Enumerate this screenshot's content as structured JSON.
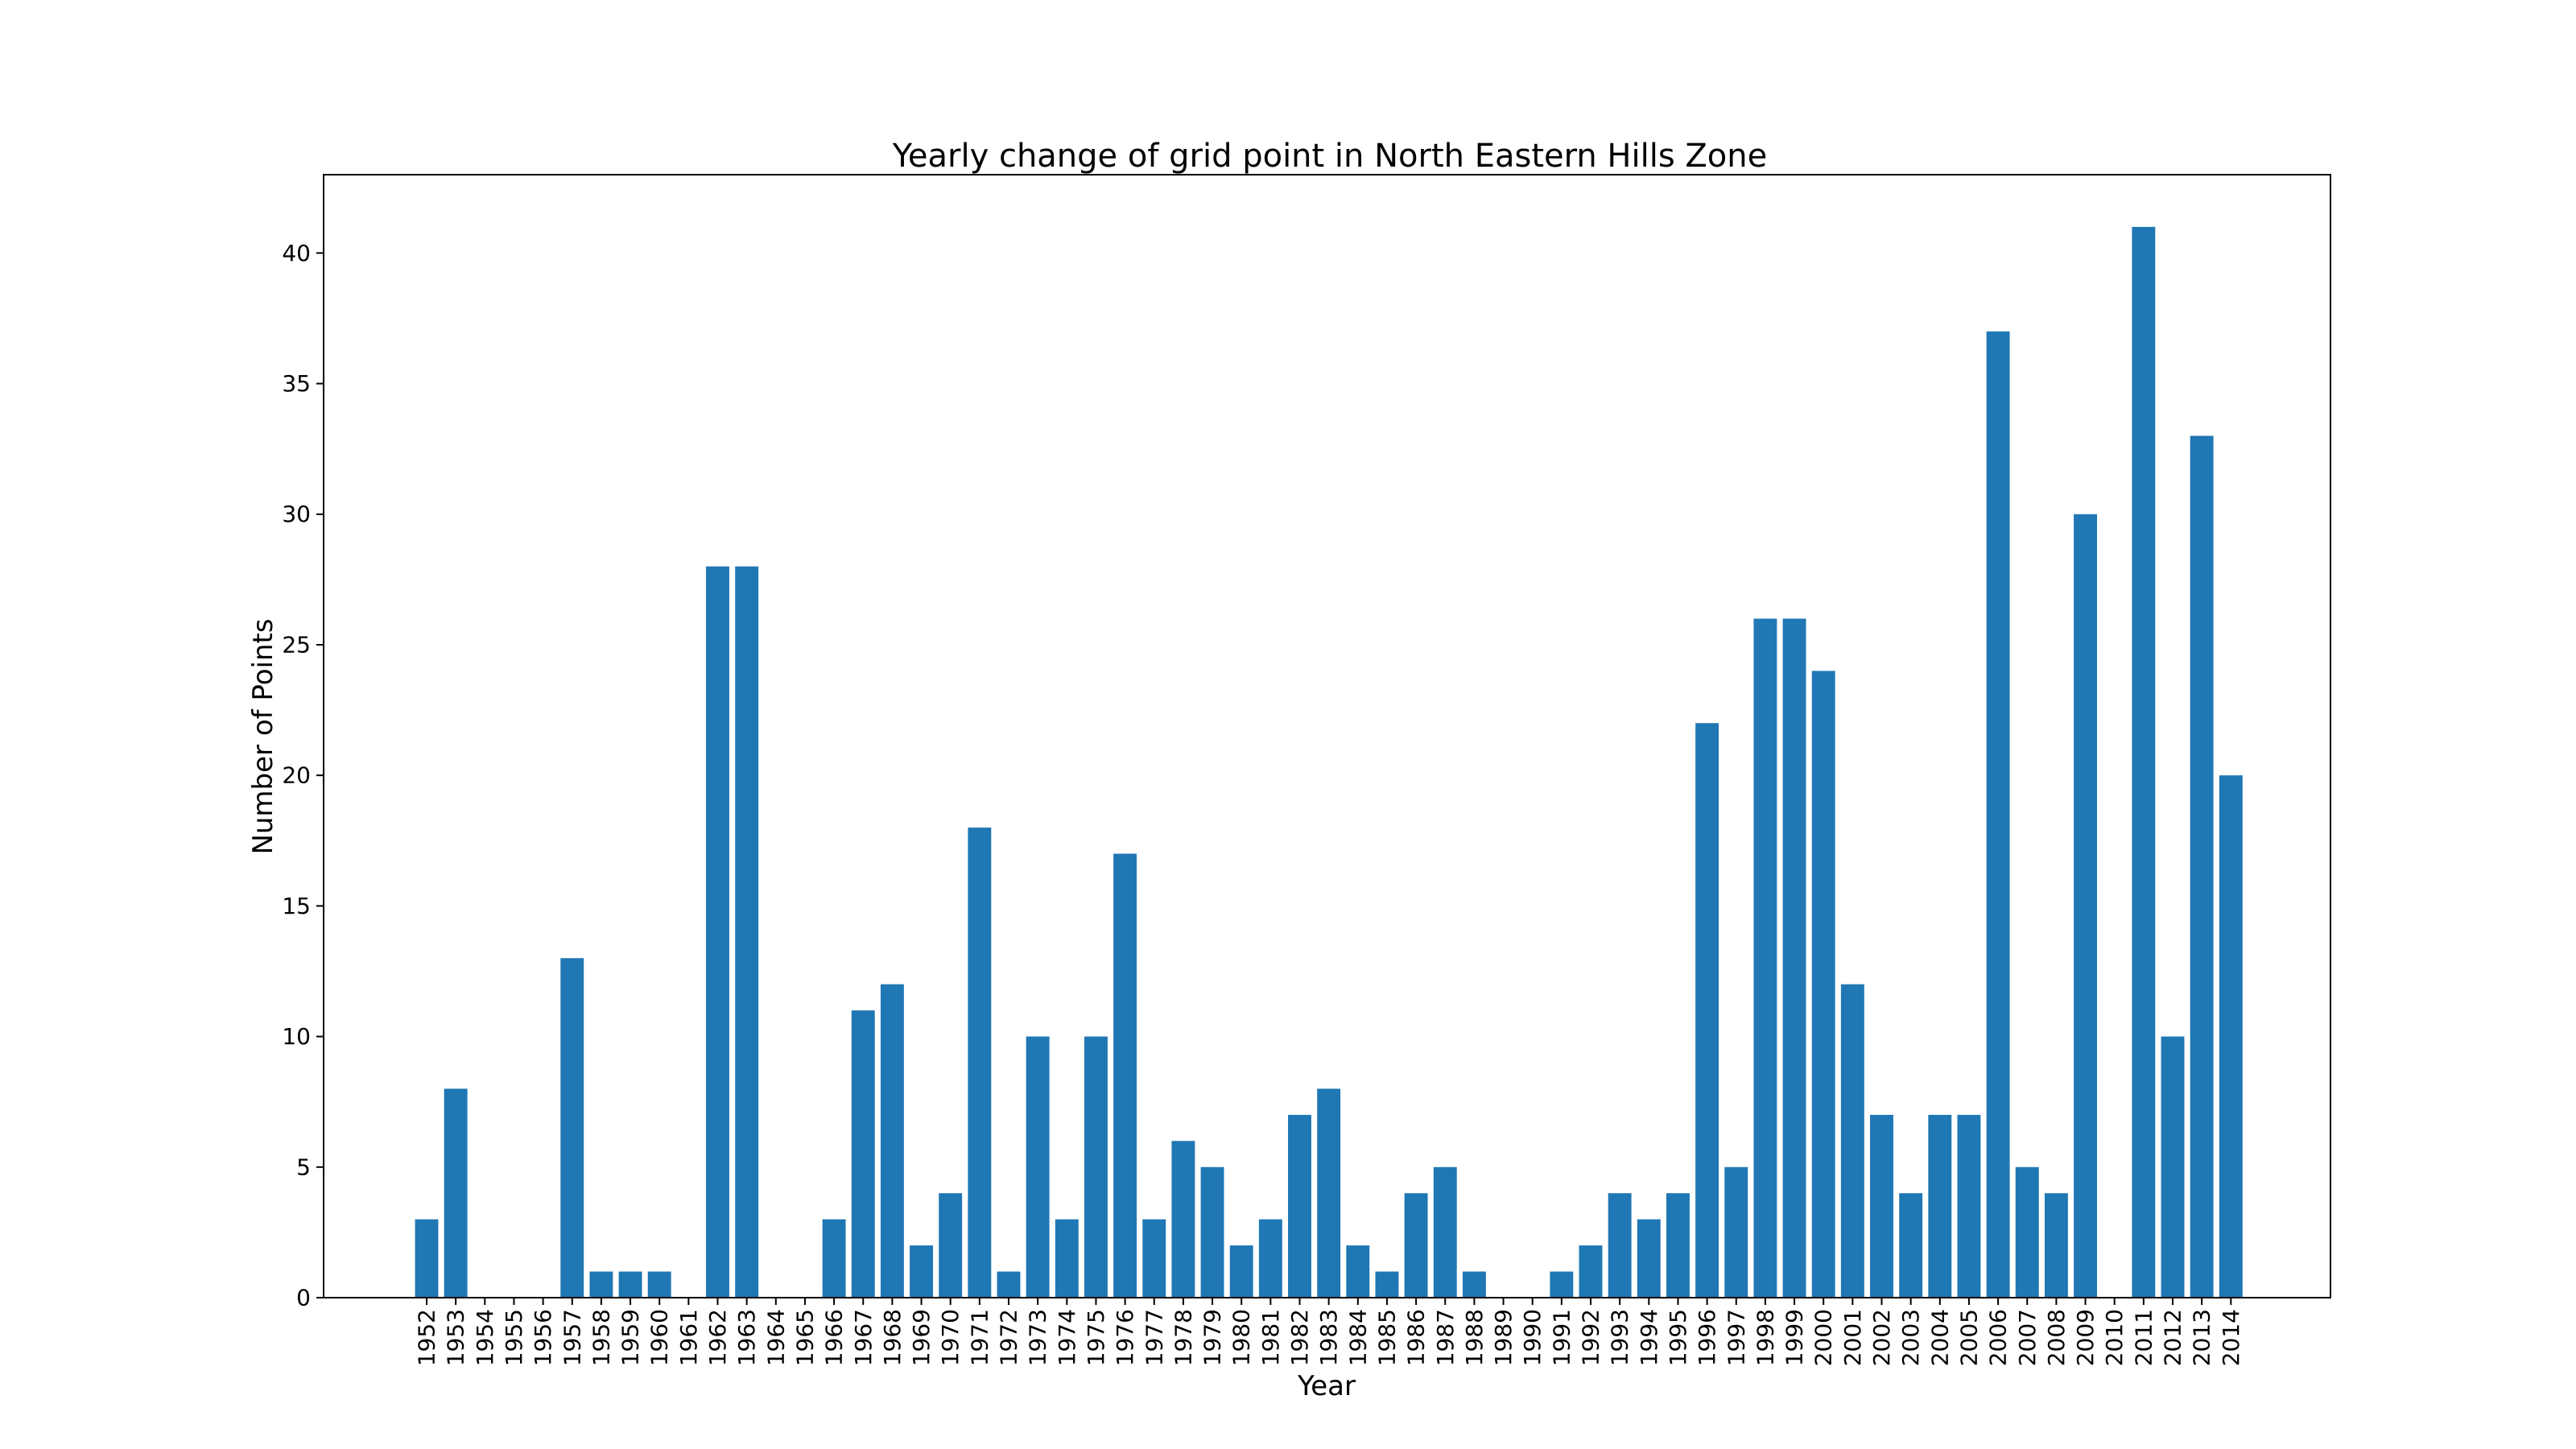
{
  "chart_data": {
    "type": "bar",
    "title": "Yearly change of grid point in North Eastern Hills Zone",
    "xlabel": "Year",
    "ylabel": "Number of Points",
    "ylim": [
      0,
      43
    ],
    "yticks": [
      0,
      5,
      10,
      15,
      20,
      25,
      30,
      35,
      40
    ],
    "color": "#1f77b4",
    "grid": false,
    "categories": [
      "1952",
      "1953",
      "1954",
      "1955",
      "1956",
      "1957",
      "1958",
      "1959",
      "1960",
      "1961",
      "1962",
      "1963",
      "1964",
      "1965",
      "1966",
      "1967",
      "1968",
      "1969",
      "1970",
      "1971",
      "1972",
      "1973",
      "1974",
      "1975",
      "1976",
      "1977",
      "1978",
      "1979",
      "1980",
      "1981",
      "1982",
      "1983",
      "1984",
      "1985",
      "1986",
      "1987",
      "1988",
      "1989",
      "1990",
      "1991",
      "1992",
      "1993",
      "1994",
      "1995",
      "1996",
      "1997",
      "1998",
      "1999",
      "2000",
      "2001",
      "2002",
      "2003",
      "2004",
      "2005",
      "2006",
      "2007",
      "2008",
      "2009",
      "2010",
      "2011",
      "2012",
      "2013",
      "2014"
    ],
    "values": [
      3,
      8,
      0,
      0,
      0,
      13,
      1,
      1,
      1,
      0,
      28,
      28,
      0,
      0,
      3,
      11,
      12,
      2,
      4,
      18,
      1,
      10,
      3,
      10,
      17,
      3,
      6,
      5,
      2,
      3,
      7,
      8,
      2,
      1,
      4,
      5,
      1,
      0,
      0,
      1,
      2,
      4,
      3,
      4,
      22,
      5,
      26,
      26,
      24,
      12,
      7,
      4,
      7,
      7,
      37,
      5,
      4,
      30,
      0,
      41,
      10,
      33,
      20
    ]
  }
}
